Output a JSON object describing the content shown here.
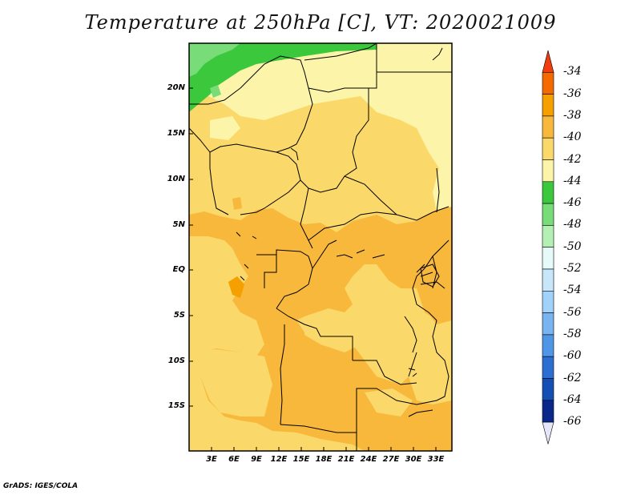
{
  "title": "Temperature at 250hPa [C], VT: 2020021009",
  "credit": "GrADS: IGES/COLA",
  "y_axis_labels": [
    "20N",
    "15N",
    "10N",
    "5N",
    "EQ",
    "5S",
    "10S",
    "15S"
  ],
  "x_axis_labels": [
    "3E",
    "6E",
    "9E",
    "12E",
    "15E",
    "18E",
    "21E",
    "24E",
    "27E",
    "30E",
    "33E"
  ],
  "colorbar": {
    "labels": [
      "-34",
      "-36",
      "-38",
      "-40",
      "-42",
      "-44",
      "-46",
      "-48",
      "-50",
      "-52",
      "-54",
      "-56",
      "-58",
      "-60",
      "-62",
      "-64",
      "-66"
    ],
    "colors": [
      "#f03c0f",
      "#f56a00",
      "#f5a000",
      "#f8b83c",
      "#fad869",
      "#fcf5a9",
      "#3cc83c",
      "#78dc78",
      "#b4f0b4",
      "#e6fafa",
      "#c8e6fa",
      "#a0d2fa",
      "#78b4f0",
      "#5096e6",
      "#2d6ed2",
      "#1450b4",
      "#0a288c",
      "#e6e6f8"
    ]
  }
}
